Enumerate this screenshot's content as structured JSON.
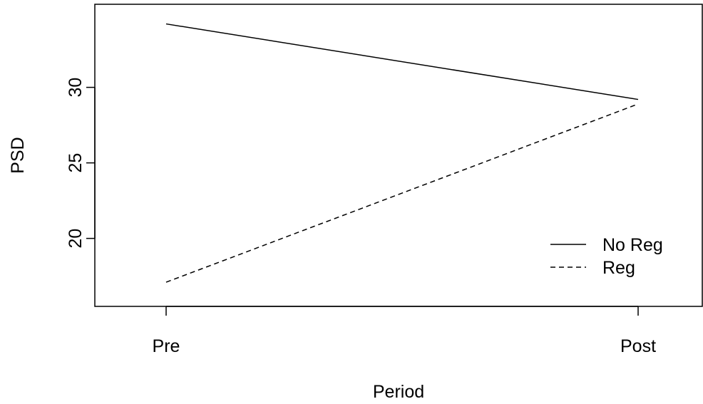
{
  "chart_data": {
    "type": "line",
    "title": "",
    "xlabel": "Period",
    "ylabel": "PSD",
    "categories": [
      "Pre",
      "Post"
    ],
    "ylim": [
      15.5,
      35.5
    ],
    "yticks": [
      "20",
      "25",
      "30"
    ],
    "grid": false,
    "legend_position": "bottom-right",
    "series": [
      {
        "name": "No Reg",
        "values": [
          34.2,
          29.2
        ],
        "line_style": "solid",
        "color": "#000000"
      },
      {
        "name": "Reg",
        "values": [
          17.1,
          28.9
        ],
        "line_style": "dashed",
        "color": "#000000"
      }
    ]
  }
}
